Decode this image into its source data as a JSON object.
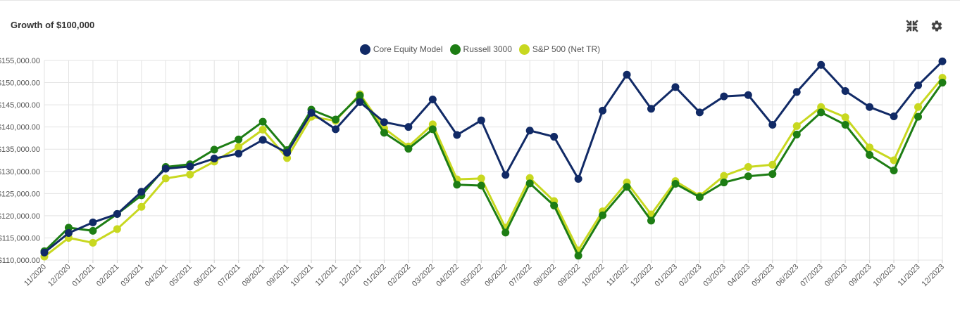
{
  "header": {
    "title": "Growth of $100,000",
    "collapse_icon": "collapse-arrows-icon",
    "settings_icon": "gear-icon"
  },
  "colors": {
    "core": "#112a66",
    "russell": "#1d7d14",
    "sp500": "#c8d820",
    "grid": "#e3e3e3",
    "tick_text": "#555555"
  },
  "chart_data": {
    "type": "line",
    "title": "Growth of $100,000",
    "xlabel": "",
    "ylabel": "",
    "ylim": [
      110000,
      155000
    ],
    "y_ticks": [
      110000,
      115000,
      120000,
      125000,
      130000,
      135000,
      140000,
      145000,
      150000,
      155000
    ],
    "y_tick_labels": [
      "$110,000.00",
      "$115,000.00",
      "$120,000.00",
      "$125,000.00",
      "$130,000.00",
      "$135,000.00",
      "$140,000.00",
      "$145,000.00",
      "$150,000.00",
      "$155,000.00"
    ],
    "grid": true,
    "legend_position": "top-center",
    "categories": [
      "11/2020",
      "12/2020",
      "01/2021",
      "02/2021",
      "03/2021",
      "04/2021",
      "05/2021",
      "06/2021",
      "07/2021",
      "08/2021",
      "09/2021",
      "10/2021",
      "11/2021",
      "12/2021",
      "01/2022",
      "02/2022",
      "03/2022",
      "04/2022",
      "05/2022",
      "06/2022",
      "07/2022",
      "08/2022",
      "09/2022",
      "10/2022",
      "11/2022",
      "12/2022",
      "01/2023",
      "02/2023",
      "03/2023",
      "04/2023",
      "05/2023",
      "06/2023",
      "07/2023",
      "08/2023",
      "09/2023",
      "10/2023",
      "11/2023",
      "12/2023"
    ],
    "series": [
      {
        "name": "S&P 500 (Net TR)",
        "color_key": "sp500",
        "values": [
          110800,
          115000,
          113900,
          117000,
          122000,
          128400,
          129300,
          132200,
          135500,
          139400,
          133000,
          142300,
          141400,
          147400,
          139700,
          135600,
          140600,
          128200,
          128400,
          117300,
          128500,
          123300,
          112200,
          121000,
          127500,
          120300,
          127800,
          124500,
          129000,
          131000,
          131500,
          140200,
          144500,
          142200,
          135400,
          132500,
          144500,
          151100
        ]
      },
      {
        "name": "Russell 3000",
        "color_key": "russell",
        "values": [
          112000,
          117300,
          116600,
          120400,
          124600,
          131000,
          131600,
          134900,
          137200,
          141200,
          134800,
          143900,
          141700,
          147100,
          138700,
          135100,
          139500,
          127000,
          126800,
          116200,
          127300,
          122300,
          111000,
          120100,
          126500,
          118900,
          127200,
          124200,
          127500,
          128900,
          129400,
          138300,
          143300,
          140500,
          133700,
          130200,
          142300,
          150000
        ]
      },
      {
        "name": "Core Equity Model",
        "color_key": "core",
        "values": [
          111700,
          116100,
          118500,
          120400,
          125400,
          130600,
          131100,
          132900,
          134000,
          137100,
          134200,
          143200,
          139500,
          145600,
          141100,
          140000,
          146200,
          138200,
          141500,
          129200,
          139200,
          137800,
          128300,
          143700,
          151800,
          144100,
          149000,
          143300,
          146900,
          147200,
          140500,
          147900,
          154000,
          148100,
          144500,
          142400,
          149400,
          154800
        ]
      }
    ],
    "legend_order": [
      "Core Equity Model",
      "Russell 3000",
      "S&P 500 (Net TR)"
    ]
  }
}
